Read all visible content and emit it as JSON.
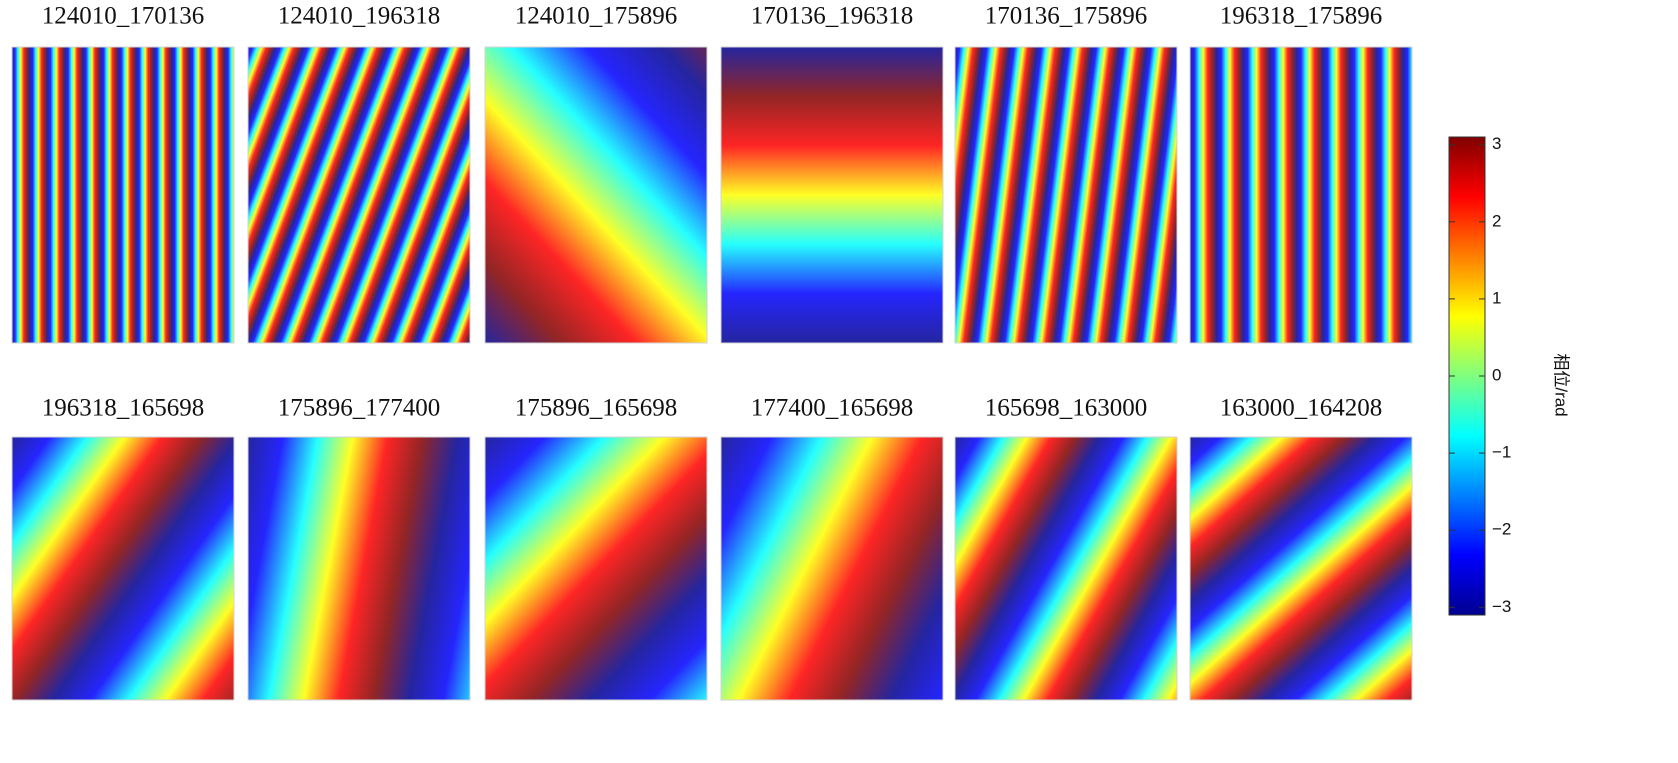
{
  "panels": [
    {
      "title": "124010_170136"
    },
    {
      "title": "124010_196318"
    },
    {
      "title": "124010_175896"
    },
    {
      "title": "170136_196318"
    },
    {
      "title": "170136_175896"
    },
    {
      "title": "196318_175896"
    },
    {
      "title": "196318_165698"
    },
    {
      "title": "175896_177400"
    },
    {
      "title": "175896_165698"
    },
    {
      "title": "177400_165698"
    },
    {
      "title": "165698_163000"
    },
    {
      "title": "163000_164208"
    }
  ],
  "colorbar": {
    "label": "相位/rad",
    "lim": [
      -3.1,
      3.1
    ],
    "ticks": [
      3,
      2,
      1,
      0,
      {
        "value": -1,
        "label": "−1"
      },
      {
        "value": -2,
        "label": "−2"
      },
      {
        "value": -3,
        "label": "−3"
      }
    ]
  }
}
